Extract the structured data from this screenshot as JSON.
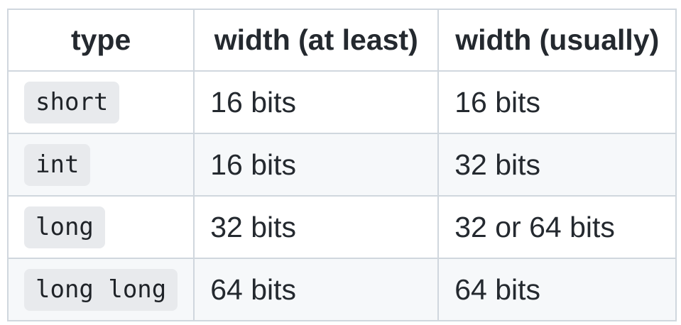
{
  "table": {
    "headers": [
      "type",
      "width (at least)",
      "width (usually)"
    ],
    "rows": [
      {
        "type": "short",
        "at_least": "16 bits",
        "usually": "16 bits"
      },
      {
        "type": "int",
        "at_least": "16 bits",
        "usually": "32 bits"
      },
      {
        "type": "long",
        "at_least": "32 bits",
        "usually": "32 or 64 bits"
      },
      {
        "type": "long long",
        "at_least": "64 bits",
        "usually": "64 bits"
      }
    ]
  }
}
